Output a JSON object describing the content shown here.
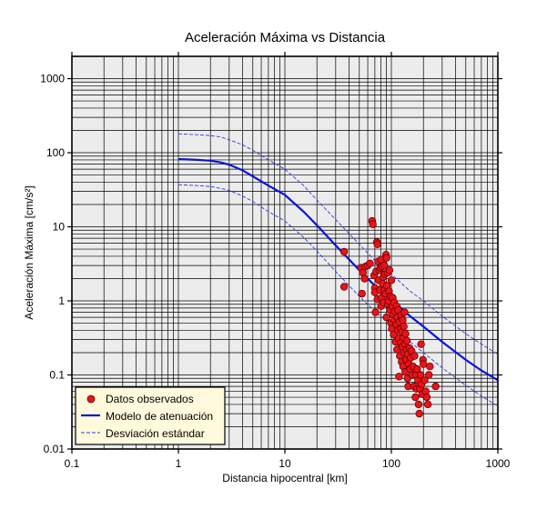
{
  "chart_data": {
    "type": "scatter",
    "title": "Aceleración Máxima vs Distancia",
    "xlabel": "Distancia hipocentral [km]",
    "ylabel": "Aceleración Máxima [cm/s²]",
    "x_scale": "log",
    "y_scale": "log",
    "xlim": [
      0.1,
      1000
    ],
    "ylim": [
      0.01,
      2000
    ],
    "x_ticks": [
      0.1,
      1,
      10,
      100,
      1000
    ],
    "x_tick_labels": [
      "0.1",
      "1",
      "10",
      "100",
      "1000"
    ],
    "y_ticks": [
      0.01,
      0.1,
      1,
      10,
      100,
      1000
    ],
    "y_tick_labels": [
      "0.01",
      "0.1",
      "1",
      "10",
      "100",
      "1000"
    ],
    "grid": true,
    "legend_position": "bottom-left",
    "colors": {
      "plot_bg": "#ececec",
      "grid": "#000000",
      "points_fill": "#e8141b",
      "points_edge": "#6a0000",
      "model": "#0a14d8",
      "deviation": "#2a3ce0",
      "legend_bg": "#fffadc"
    },
    "series": [
      {
        "name": "Datos observados",
        "kind": "scatter",
        "x": [
          36,
          36,
          52,
          53,
          54,
          56,
          57,
          60,
          63,
          66,
          67,
          69,
          70,
          70,
          71,
          72,
          73,
          74,
          74,
          75,
          76,
          77,
          78,
          79,
          80,
          80,
          81,
          82,
          83,
          84,
          85,
          86,
          86,
          87,
          88,
          89,
          90,
          90,
          91,
          92,
          93,
          94,
          95,
          96,
          97,
          98,
          99,
          100,
          101,
          102,
          103,
          104,
          105,
          106,
          107,
          108,
          110,
          111,
          112,
          113,
          114,
          115,
          116,
          117,
          118,
          119,
          120,
          122,
          123,
          124,
          125,
          126,
          127,
          128,
          129,
          130,
          131,
          132,
          133,
          134,
          135,
          136,
          138,
          139,
          140,
          142,
          143,
          144,
          146,
          148,
          150,
          152,
          155,
          158,
          160,
          163,
          165,
          168,
          170,
          172,
          175,
          178,
          180,
          183,
          185,
          188,
          190,
          192,
          195,
          198,
          200,
          205,
          210,
          215,
          220,
          225,
          230,
          260
        ],
        "y": [
          4.6,
          1.55,
          2.8,
          1.25,
          2.4,
          2.0,
          2.9,
          3.0,
          3.2,
          12.0,
          10.8,
          2.2,
          1.5,
          1.3,
          0.7,
          2.5,
          6.2,
          5.8,
          1.05,
          3.4,
          1.9,
          2.6,
          1.4,
          2.8,
          0.85,
          3.6,
          1.1,
          2.9,
          1.7,
          2.1,
          0.95,
          1.4,
          3.0,
          2.3,
          1.25,
          4.2,
          3.8,
          0.6,
          1.6,
          2.4,
          0.9,
          1.0,
          1.35,
          2.6,
          0.75,
          1.15,
          0.5,
          1.9,
          0.42,
          0.85,
          1.1,
          0.65,
          0.35,
          0.95,
          0.55,
          0.72,
          0.28,
          0.48,
          0.85,
          0.22,
          0.6,
          0.4,
          0.75,
          0.31,
          0.095,
          0.52,
          0.18,
          0.27,
          0.42,
          0.64,
          0.15,
          0.38,
          0.24,
          0.55,
          0.13,
          0.32,
          0.45,
          0.2,
          0.7,
          0.26,
          0.11,
          0.36,
          0.16,
          0.22,
          0.29,
          0.09,
          0.19,
          0.07,
          0.14,
          0.23,
          0.12,
          0.17,
          0.21,
          0.1,
          0.13,
          0.07,
          0.18,
          0.05,
          0.1,
          0.065,
          0.12,
          0.085,
          0.04,
          0.03,
          0.065,
          0.1,
          0.26,
          0.075,
          0.055,
          0.16,
          0.14,
          0.085,
          0.06,
          0.05,
          0.04,
          0.1,
          0.13,
          0.07
        ]
      },
      {
        "name": "Modelo de atenuación",
        "kind": "line",
        "x": [
          1,
          1.5,
          2,
          2.5,
          3,
          4,
          5,
          7,
          10,
          15,
          20,
          30,
          50,
          70,
          100,
          150,
          200,
          300,
          500,
          700,
          1000
        ],
        "y": [
          82,
          80,
          78,
          74,
          69,
          58,
          48,
          36,
          27,
          16,
          10.5,
          5.6,
          2.6,
          1.6,
          1.05,
          0.62,
          0.45,
          0.28,
          0.16,
          0.115,
          0.085
        ]
      },
      {
        "name": "Desviación estándar",
        "kind": "dashed",
        "bands": [
          {
            "x": [
              1,
              1.5,
              2,
              2.5,
              3,
              4,
              5,
              7,
              10,
              15,
              20,
              30,
              50,
              70,
              100,
              150,
              200,
              300,
              500,
              700,
              1000
            ],
            "y": [
              180,
              175,
              170,
              163,
              150,
              128,
              108,
              80,
              60,
              36,
              23,
              12.5,
              5.8,
              3.5,
              2.3,
              1.35,
              1.0,
              0.62,
              0.36,
              0.26,
              0.19
            ]
          },
          {
            "x": [
              1,
              1.5,
              2,
              2.5,
              3,
              4,
              5,
              7,
              10,
              15,
              20,
              30,
              50,
              70,
              100,
              150,
              200,
              300,
              500,
              700,
              1000
            ],
            "y": [
              37,
              36,
              35,
              33,
              31,
              26,
              22,
              16,
              12,
              7.2,
              4.7,
              2.5,
              1.15,
              0.72,
              0.47,
              0.28,
              0.2,
              0.125,
              0.072,
              0.052,
              0.038
            ]
          }
        ]
      }
    ]
  }
}
